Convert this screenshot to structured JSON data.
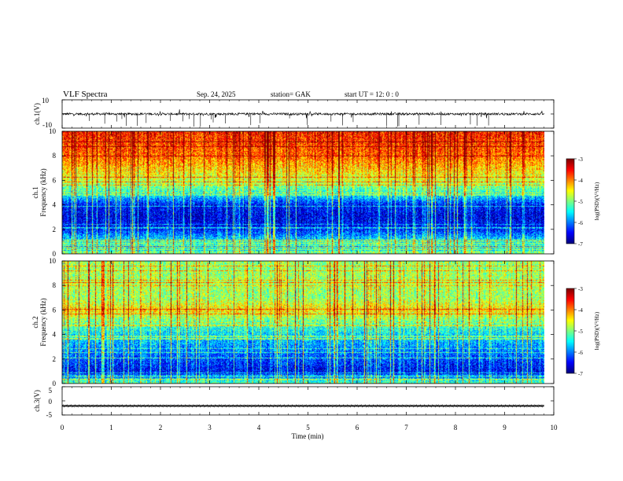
{
  "header": {
    "title": "VLF  Spectra",
    "date": "Sep. 24, 2025",
    "station": "station= GAK",
    "start": "start  UT =    12: 0   : 0"
  },
  "chart_data": [
    {
      "type": "line",
      "name": "ch1-waveform",
      "ylabel": "ch.1(V)",
      "ylim": [
        -10,
        10
      ],
      "ytick_labels": [
        "10",
        "-10"
      ],
      "xlim": [
        0,
        10
      ],
      "series_color": "#000000",
      "baseline_value": 0,
      "approx_range": [
        -3,
        3
      ]
    },
    {
      "type": "heatmap",
      "name": "ch1-spectrogram",
      "ylabel": "ch.1\nFrequency (kHz)",
      "ylim": [
        0,
        10
      ],
      "ytick_labels": [
        "0",
        "2",
        "4",
        "6",
        "8",
        "10"
      ],
      "xlim": [
        0,
        10
      ],
      "data_end_min": 9.8,
      "colorbar": {
        "label": "log(PSD)(V²/Hz)",
        "range": [
          -7,
          -3
        ],
        "tick_labels": [
          "-3",
          "-4",
          "-5",
          "-6",
          "-7"
        ]
      },
      "profile": [
        {
          "f_khz": 0,
          "level": -5.0
        },
        {
          "f_khz": 1,
          "level": -5.5
        },
        {
          "f_khz": 2,
          "level": -6.4
        },
        {
          "f_khz": 3,
          "level": -6.6
        },
        {
          "f_khz": 4,
          "level": -6.4
        },
        {
          "f_khz": 5,
          "level": -5.3
        },
        {
          "f_khz": 6,
          "level": -4.7
        },
        {
          "f_khz": 7,
          "level": -4.3
        },
        {
          "f_khz": 8,
          "level": -3.9
        },
        {
          "f_khz": 10,
          "level": -3.6
        }
      ]
    },
    {
      "type": "heatmap",
      "name": "ch2-spectrogram",
      "ylabel": "ch.2\nFrequency (kHz)",
      "ylim": [
        0,
        10
      ],
      "ytick_labels": [
        "0",
        "2",
        "4",
        "6",
        "8",
        "10"
      ],
      "xlim": [
        0,
        10
      ],
      "data_end_min": 9.8,
      "colorbar": {
        "label": "log(PSD)(V²/Hz)",
        "range": [
          -7,
          -3
        ],
        "tick_labels": [
          "-3",
          "-4",
          "-5",
          "-6",
          "-7"
        ]
      },
      "profile": [
        {
          "f_khz": 0,
          "level": -5.2
        },
        {
          "f_khz": 1,
          "level": -6.5
        },
        {
          "f_khz": 2,
          "level": -6.2
        },
        {
          "f_khz": 3,
          "level": -5.9
        },
        {
          "f_khz": 4,
          "level": -5.6
        },
        {
          "f_khz": 5,
          "level": -5.1
        },
        {
          "f_khz": 6,
          "level": -4.4
        },
        {
          "f_khz": 7,
          "level": -4.9
        },
        {
          "f_khz": 8,
          "level": -4.8
        },
        {
          "f_khz": 10,
          "level": -4.9
        }
      ]
    },
    {
      "type": "line",
      "name": "ch3-waveform",
      "ylabel": "ch.3(V)",
      "ylim": [
        -5,
        5
      ],
      "ytick_labels": [
        "5",
        "0",
        "-5"
      ],
      "xlim": [
        0,
        10
      ],
      "series_color": "#000000",
      "baseline_value": -1.8
    }
  ],
  "xaxis": {
    "label": "Time  (min)",
    "range": [
      0,
      10
    ],
    "tick_labels": [
      "0",
      "1",
      "2",
      "3",
      "4",
      "5",
      "6",
      "7",
      "8",
      "9",
      "10"
    ]
  }
}
